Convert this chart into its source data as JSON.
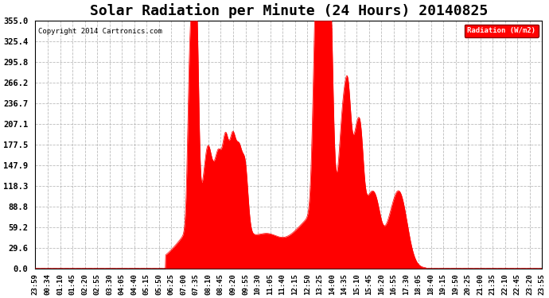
{
  "title": "Solar Radiation per Minute (24 Hours) 20140825",
  "copyright": "Copyright 2014 Cartronics.com",
  "legend_label": "Radiation (W/m2)",
  "ylim": [
    0.0,
    355.0
  ],
  "yticks": [
    0.0,
    29.6,
    59.2,
    88.8,
    118.3,
    147.9,
    177.5,
    207.1,
    236.7,
    266.2,
    295.8,
    325.4,
    355.0
  ],
  "fill_color": "#FF0000",
  "background_color": "#FFFFFF",
  "grid_color": "#AAAAAA",
  "title_fontsize": 13,
  "tick_fontsize": 6.5,
  "x_tick_labels": [
    "23:59",
    "00:34",
    "01:10",
    "01:45",
    "02:20",
    "02:55",
    "03:30",
    "04:05",
    "04:40",
    "05:15",
    "05:50",
    "06:25",
    "07:00",
    "07:35",
    "08:10",
    "08:45",
    "09:20",
    "09:55",
    "10:30",
    "11:05",
    "11:40",
    "12:15",
    "12:50",
    "13:25",
    "14:00",
    "14:35",
    "15:10",
    "15:45",
    "16:20",
    "16:55",
    "17:30",
    "18:05",
    "18:40",
    "19:15",
    "19:50",
    "20:25",
    "21:00",
    "21:35",
    "22:10",
    "22:45",
    "23:20",
    "23:55"
  ]
}
